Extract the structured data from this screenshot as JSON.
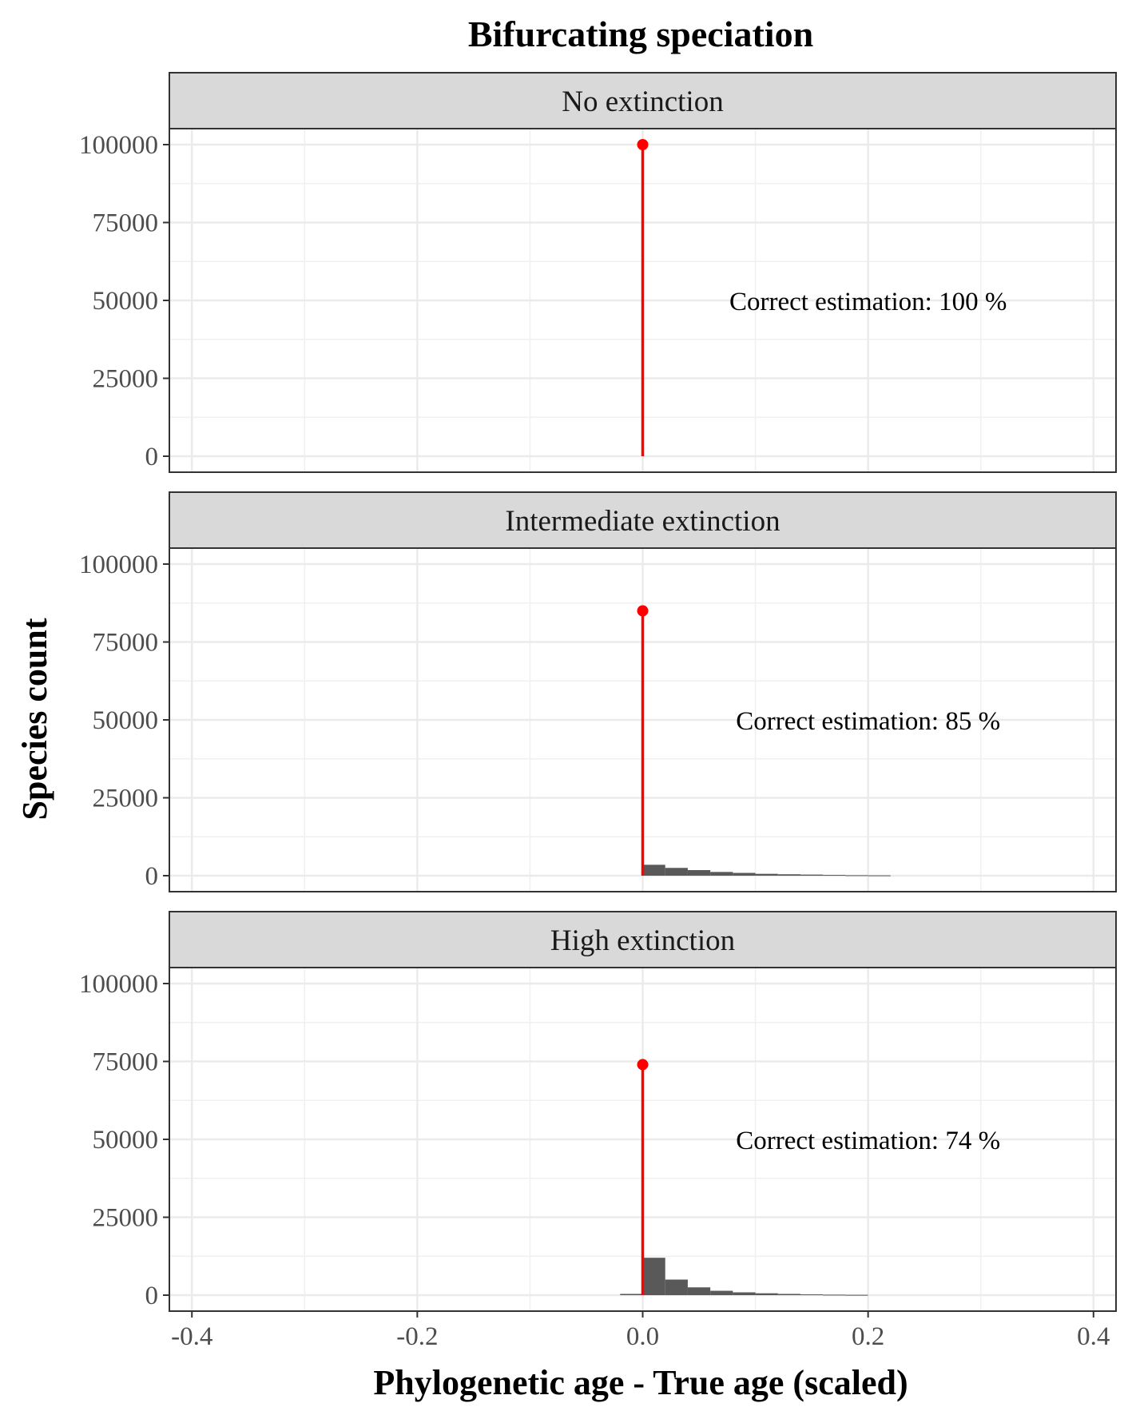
{
  "chart_data": {
    "type": "bar",
    "title": "Bifurcating speciation",
    "xlabel": "Phylogenetic age - True age (scaled)",
    "ylabel": "Species count",
    "xlim": [
      -0.4,
      0.4
    ],
    "ylim": [
      0,
      100000
    ],
    "x_ticks": [
      "-0.4",
      "-0.2",
      "0.0",
      "0.2",
      "0.4"
    ],
    "y_ticks": [
      "0",
      "25000",
      "50000",
      "75000",
      "100000"
    ],
    "grid": true,
    "bin_width": 0.02,
    "colors": {
      "bars": "#595959",
      "lollipop": "#ff0000",
      "strip": "#d9d9d9"
    },
    "panels": [
      {
        "strip": "No extinction",
        "correct_count": 100000,
        "annotation": "Correct estimation: 100 %",
        "bins": []
      },
      {
        "strip": "Intermediate extinction",
        "correct_count": 85000,
        "annotation": "Correct estimation: 85 %",
        "bins": [
          {
            "x0": 0.0,
            "x1": 0.02,
            "value": 3500
          },
          {
            "x0": 0.02,
            "x1": 0.04,
            "value": 2500
          },
          {
            "x0": 0.04,
            "x1": 0.06,
            "value": 1800
          },
          {
            "x0": 0.06,
            "x1": 0.08,
            "value": 1200
          },
          {
            "x0": 0.08,
            "x1": 0.1,
            "value": 900
          },
          {
            "x0": 0.1,
            "x1": 0.12,
            "value": 600
          },
          {
            "x0": 0.12,
            "x1": 0.14,
            "value": 450
          },
          {
            "x0": 0.14,
            "x1": 0.16,
            "value": 350
          },
          {
            "x0": 0.16,
            "x1": 0.18,
            "value": 250
          },
          {
            "x0": 0.18,
            "x1": 0.2,
            "value": 150
          },
          {
            "x0": 0.2,
            "x1": 0.22,
            "value": 100
          }
        ]
      },
      {
        "strip": "High extinction",
        "correct_count": 74000,
        "annotation": "Correct estimation: 74 %",
        "bins": [
          {
            "x0": -0.02,
            "x1": 0.0,
            "value": 400
          },
          {
            "x0": 0.0,
            "x1": 0.02,
            "value": 12000
          },
          {
            "x0": 0.02,
            "x1": 0.04,
            "value": 5000
          },
          {
            "x0": 0.04,
            "x1": 0.06,
            "value": 2500
          },
          {
            "x0": 0.06,
            "x1": 0.08,
            "value": 1400
          },
          {
            "x0": 0.08,
            "x1": 0.1,
            "value": 900
          },
          {
            "x0": 0.1,
            "x1": 0.12,
            "value": 600
          },
          {
            "x0": 0.12,
            "x1": 0.14,
            "value": 400
          },
          {
            "x0": 0.14,
            "x1": 0.16,
            "value": 250
          },
          {
            "x0": 0.16,
            "x1": 0.18,
            "value": 150
          },
          {
            "x0": 0.18,
            "x1": 0.2,
            "value": 100
          }
        ]
      }
    ]
  }
}
